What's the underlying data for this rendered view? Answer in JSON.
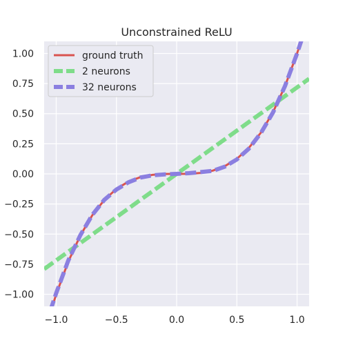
{
  "chart_data": {
    "type": "line",
    "title": "Unconstrained ReLU",
    "xlabel": "",
    "ylabel": "",
    "xlim": [
      -1.1,
      1.1
    ],
    "ylim": [
      -1.1,
      1.1
    ],
    "x_ticks": [
      -1.0,
      -0.5,
      0.0,
      0.5,
      1.0
    ],
    "x_tick_labels": [
      "−1.0",
      "−0.5",
      "0.0",
      "0.5",
      "1.0"
    ],
    "y_ticks": [
      1.0,
      0.75,
      0.5,
      0.25,
      0.0,
      -0.25,
      -0.5,
      -0.75,
      -1.0
    ],
    "y_tick_labels": [
      "1.00",
      "0.75",
      "0.50",
      "0.25",
      "0.00",
      "−0.25",
      "−0.50",
      "−0.75",
      "−1.00"
    ],
    "grid": true,
    "legend_position": "top-left",
    "series": [
      {
        "name": "ground truth",
        "color": "#d9534f",
        "style": "solid",
        "x": [
          -1.05,
          -1.0,
          -0.9,
          -0.8,
          -0.7,
          -0.6,
          -0.5,
          -0.4,
          -0.3,
          -0.2,
          -0.1,
          0.0,
          0.1,
          0.2,
          0.3,
          0.4,
          0.5,
          0.6,
          0.7,
          0.8,
          0.9,
          1.0,
          1.05
        ],
        "y": [
          -1.158,
          -1.0,
          -0.729,
          -0.512,
          -0.343,
          -0.216,
          -0.125,
          -0.064,
          -0.027,
          -0.008,
          -0.001,
          0.0,
          0.001,
          0.008,
          0.027,
          0.064,
          0.125,
          0.216,
          0.343,
          0.512,
          0.729,
          1.0,
          1.158
        ]
      },
      {
        "name": "2 neurons",
        "color": "#7fdc8a",
        "style": "dashed",
        "x": [
          -1.1,
          1.1
        ],
        "y": [
          -0.79,
          0.79
        ]
      },
      {
        "name": "32 neurons",
        "color": "#8b7fe0",
        "style": "dashed",
        "x": [
          -1.05,
          -1.0,
          -0.9,
          -0.8,
          -0.7,
          -0.6,
          -0.5,
          -0.4,
          -0.3,
          -0.2,
          -0.1,
          0.0,
          0.1,
          0.2,
          0.3,
          0.4,
          0.5,
          0.6,
          0.7,
          0.8,
          0.9,
          1.0,
          1.05
        ],
        "y": [
          -1.14,
          -0.99,
          -0.72,
          -0.51,
          -0.34,
          -0.215,
          -0.13,
          -0.07,
          -0.03,
          -0.012,
          -0.004,
          0.0,
          0.006,
          0.015,
          0.025,
          0.06,
          0.12,
          0.21,
          0.34,
          0.51,
          0.73,
          1.0,
          1.15
        ]
      }
    ]
  }
}
